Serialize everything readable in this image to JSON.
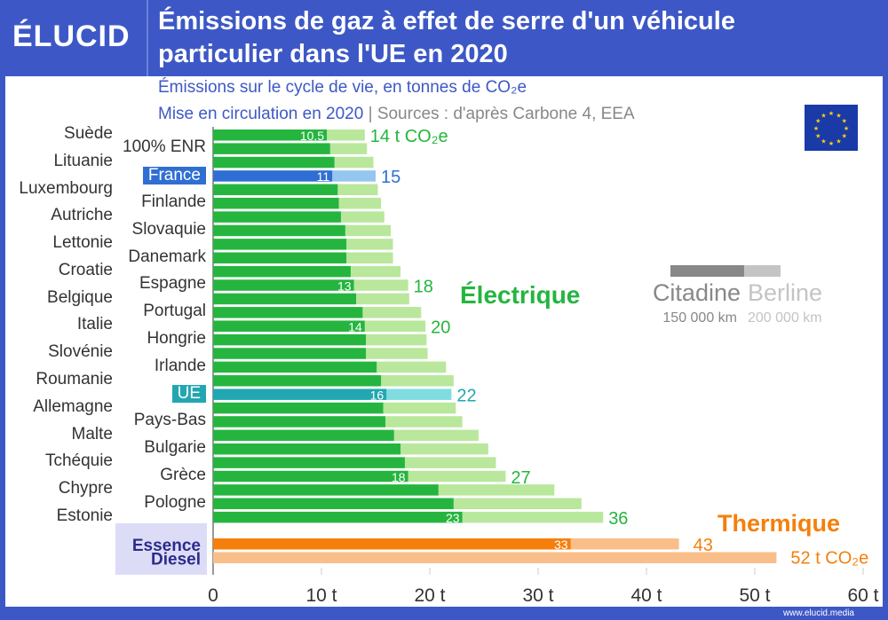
{
  "header": {
    "logo": "ÉLUCID",
    "title_line1": "Émissions de gaz à effet de serre d'un véhicule",
    "title_line2": "particulier dans l'UE en 2020"
  },
  "subtitle": {
    "line1": "Émissions sur le cycle de vie, en tonnes de CO₂e",
    "line2_a": "Mise en circulation en 2020",
    "separator": "|",
    "line2_b": "Sources : d'après Carbone 4, EEA"
  },
  "footer": "www.elucid.media",
  "colors": {
    "header": "#3d58c6",
    "green_dark": "#25b53f",
    "green_light": "#b9e79c",
    "france_dark": "#2f6fd3",
    "france_light": "#94c6f0",
    "ue_dark": "#22a7b2",
    "ue_light": "#7fdde0",
    "orange_dark": "#f57f0a",
    "orange_light": "#f9be89"
  },
  "chart_data": {
    "type": "bar",
    "orientation": "horizontal",
    "xlim": [
      0,
      60
    ],
    "xticks": [
      "0",
      "10 t",
      "20 t",
      "30 t",
      "40 t",
      "50 t",
      "60 t"
    ],
    "legend": {
      "citadine": "Citadine",
      "berline": "Berline",
      "citadine_km": "150 000 km",
      "berline_km": "200 000 km"
    },
    "group_labels": {
      "electric": "Électrique",
      "thermal": "Thermique"
    },
    "electric": [
      {
        "name": "Suède",
        "citadine": 10.5,
        "berline": 14,
        "label_c": "10.5",
        "label_b": "14 t CO₂e"
      },
      {
        "name": "100% ENR",
        "citadine": 10.8,
        "berline": 14.2
      },
      {
        "name": "Lituanie",
        "citadine": 11.2,
        "berline": 14.8
      },
      {
        "name": "France",
        "citadine": 11,
        "berline": 15,
        "label_c": "11",
        "label_b": "15",
        "highlight": "france"
      },
      {
        "name": "Luxembourg",
        "citadine": 11.5,
        "berline": 15.2
      },
      {
        "name": "Finlande",
        "citadine": 11.6,
        "berline": 15.5
      },
      {
        "name": "Autriche",
        "citadine": 11.8,
        "berline": 15.8
      },
      {
        "name": "Slovaquie",
        "citadine": 12.2,
        "berline": 16.4
      },
      {
        "name": "Lettonie",
        "citadine": 12.3,
        "berline": 16.6
      },
      {
        "name": "Danemark",
        "citadine": 12.3,
        "berline": 16.6
      },
      {
        "name": "Croatie",
        "citadine": 12.7,
        "berline": 17.3
      },
      {
        "name": "Espagne",
        "citadine": 13,
        "berline": 18,
        "label_c": "13",
        "label_b": "18"
      },
      {
        "name": "Belgique",
        "citadine": 13.2,
        "berline": 18.1
      },
      {
        "name": "Portugal",
        "citadine": 13.8,
        "berline": 19.2
      },
      {
        "name": "Italie",
        "citadine": 14,
        "berline": 19.6,
        "label_c": "14",
        "label_b": "20"
      },
      {
        "name": "Hongrie",
        "citadine": 14.1,
        "berline": 19.7
      },
      {
        "name": "Slovénie",
        "citadine": 14.1,
        "berline": 19.8
      },
      {
        "name": "Irlande",
        "citadine": 15.1,
        "berline": 21.5
      },
      {
        "name": "Roumanie",
        "citadine": 15.5,
        "berline": 22.2
      },
      {
        "name": "UE",
        "citadine": 16,
        "berline": 22,
        "label_c": "16",
        "label_b": "22",
        "highlight": "ue"
      },
      {
        "name": "Allemagne",
        "citadine": 15.7,
        "berline": 22.4
      },
      {
        "name": "Pays-Bas",
        "citadine": 15.9,
        "berline": 23.0
      },
      {
        "name": "Malte",
        "citadine": 16.7,
        "berline": 24.5
      },
      {
        "name": "Bulgarie",
        "citadine": 17.3,
        "berline": 25.4
      },
      {
        "name": "Tchéquie",
        "citadine": 17.7,
        "berline": 26.1
      },
      {
        "name": "Grèce",
        "citadine": 18,
        "berline": 27,
        "label_c": "18",
        "label_b": "27"
      },
      {
        "name": "Chypre",
        "citadine": 20.8,
        "berline": 31.5
      },
      {
        "name": "Pologne",
        "citadine": 22.2,
        "berline": 34.0
      },
      {
        "name": "Estonie",
        "citadine": 23,
        "berline": 36,
        "label_c": "23",
        "label_b": "36"
      }
    ],
    "thermal": [
      {
        "name": "Essence",
        "citadine": 33,
        "berline": 43,
        "label_c": "33",
        "label_b": "43"
      },
      {
        "name": "Diesel",
        "citadine": null,
        "berline": 52,
        "label_b": "52 t CO₂e"
      }
    ]
  }
}
